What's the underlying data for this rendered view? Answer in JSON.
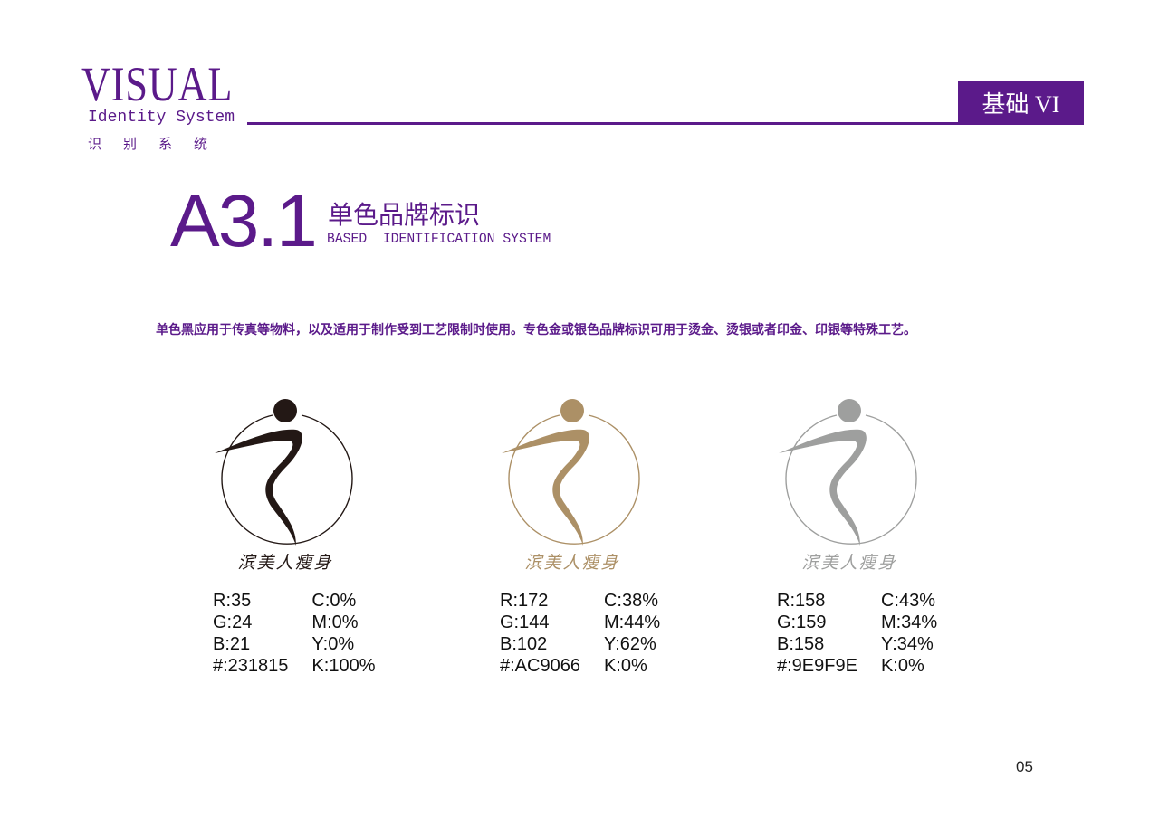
{
  "header": {
    "visual": "VISUAL",
    "identity": "Identity System",
    "chinese": "识别系统",
    "tag": "基础 VI"
  },
  "section": {
    "number": "A3.1",
    "title": "单色品牌标识",
    "subtitle": "BASED  IDENTIFICATION SYSTEM"
  },
  "description": "单色黑应用于传真等物料，以及适用于制作受到工艺限制时使用。专色金或银色品牌标识可用于烫金、烫银或者印金、印银等特殊工艺。",
  "variants": [
    {
      "color": "#231815",
      "brand": "滨美人瘦身",
      "rgb": [
        "R:35",
        "G:24",
        "B:21",
        "#:231815"
      ],
      "cmyk": [
        "C:0%",
        "M:0%",
        "Y:0%",
        "K:100%"
      ]
    },
    {
      "color": "#AC9066",
      "brand": "滨美人瘦身",
      "rgb": [
        "R:172",
        "G:144",
        "B:102",
        "#:AC9066"
      ],
      "cmyk": [
        "C:38%",
        "M:44%",
        "Y:62%",
        "K:0%"
      ]
    },
    {
      "color": "#9E9F9E",
      "brand": "滨美人瘦身",
      "rgb": [
        "R:158",
        "G:159",
        "B:158",
        "#:9E9F9E"
      ],
      "cmyk": [
        "C:43%",
        "M:34%",
        "Y:34%",
        "K:0%"
      ]
    }
  ],
  "page_number": "05",
  "accent": "#5B1A8A"
}
